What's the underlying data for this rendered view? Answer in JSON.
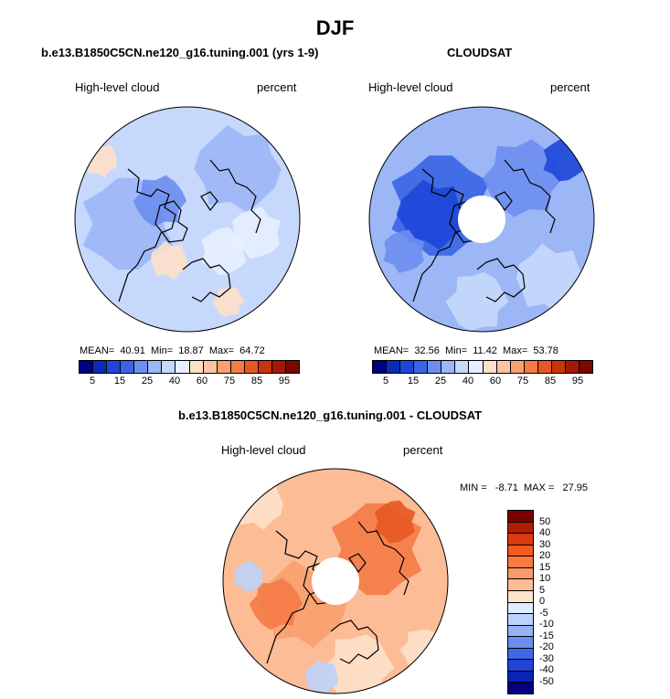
{
  "page_title": "DJF",
  "panels": [
    {
      "id": "model",
      "subtitle": "b.e13.B1850C5CN.ne120_g16.tuning.001 (yrs 1-9)",
      "variable": "High-level cloud",
      "units": "percent",
      "stats": "MEAN=  40.91  Min=  18.87  Max=  64.72",
      "mean": 40.91,
      "min": 18.87,
      "max": 64.72,
      "has_hole": false
    },
    {
      "id": "obs",
      "subtitle": "CLOUDSAT",
      "variable": "High-level cloud",
      "units": "percent",
      "stats": "MEAN=  32.56  Min=  11.42  Max=  53.78",
      "mean": 32.56,
      "min": 11.42,
      "max": 53.78,
      "has_hole": true
    }
  ],
  "diff_panel": {
    "subtitle": "b.e13.B1850C5CN.ne120_g16.tuning.001 - CLOUDSAT",
    "variable": "High-level cloud",
    "units": "percent",
    "stats": "MIN =   -8.71  MAX =   27.95",
    "min": -8.71,
    "max": 27.95
  },
  "colorbar_main": {
    "labels": [
      "5",
      "15",
      "25",
      "40",
      "60",
      "75",
      "85",
      "95"
    ],
    "colors": [
      "#000080",
      "#0a2bb8",
      "#1e46d8",
      "#3a64e6",
      "#6d8ef0",
      "#9cb6f6",
      "#c6d8fb",
      "#e6efff",
      "#fde0c9",
      "#fbc3a0",
      "#f8a06f",
      "#f47a46",
      "#e85623",
      "#c83410",
      "#a01a06",
      "#780800"
    ]
  },
  "colorbar_diff": {
    "labels": [
      "50",
      "40",
      "30",
      "20",
      "15",
      "10",
      "5",
      "0",
      "-5",
      "-10",
      "-15",
      "-20",
      "-30",
      "-40",
      "-50"
    ],
    "colors": [
      "#7a0000",
      "#b01e05",
      "#d93a12",
      "#f25a22",
      "#f77a42",
      "#fa9a68",
      "#fcbc96",
      "#fde2ca",
      "#e0ecfd",
      "#bcd2fa",
      "#94b4f5",
      "#6a8ef0",
      "#3f68e8",
      "#1f44d6",
      "#0a24b0",
      "#000080"
    ]
  }
}
